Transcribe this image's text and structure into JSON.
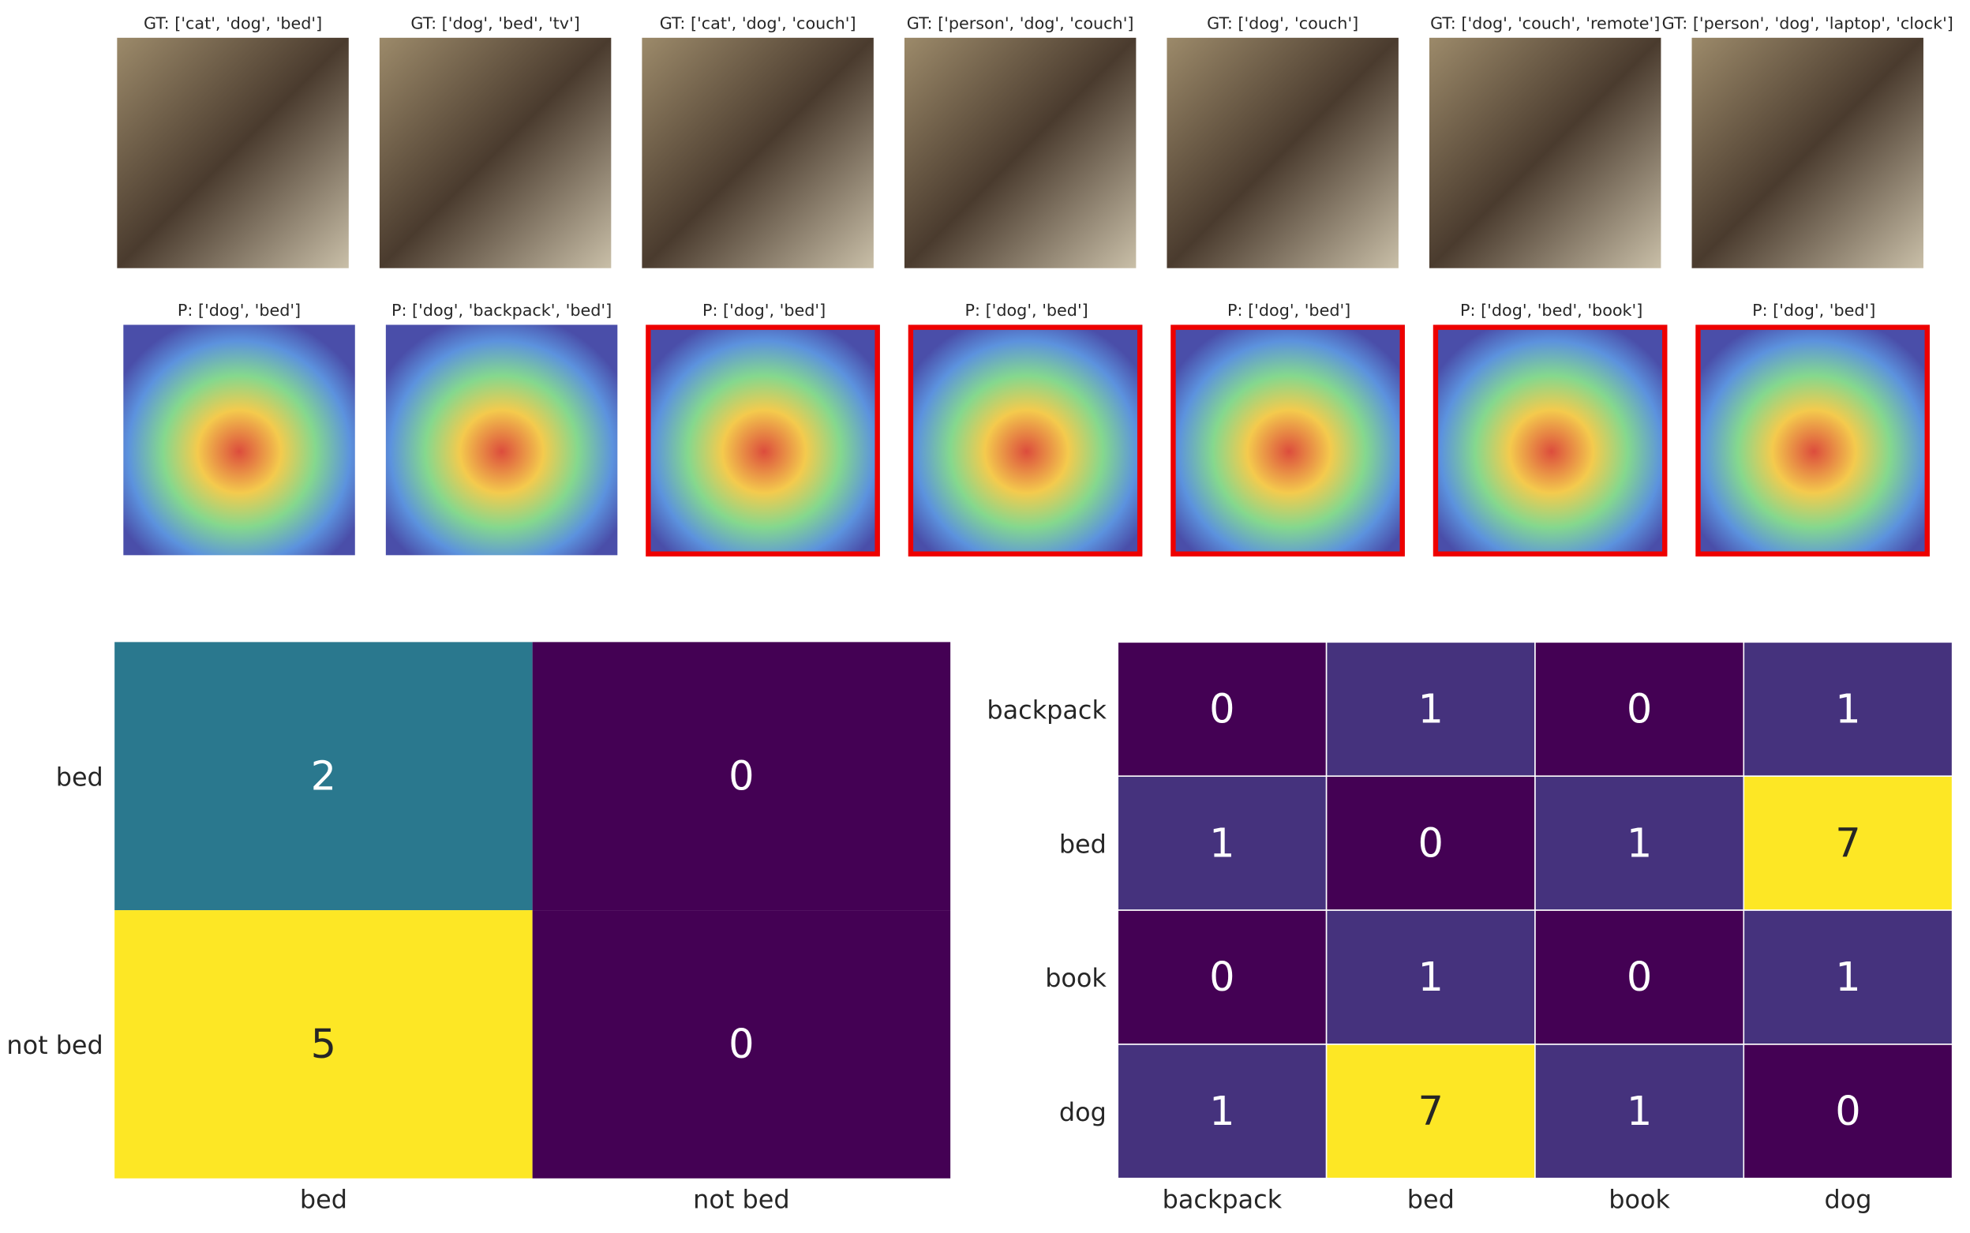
{
  "panels": [
    {
      "gt": "GT: ['cat', 'dog', 'bed']",
      "pred": "P: ['dog', 'bed']",
      "highlight": false
    },
    {
      "gt": "GT: ['dog', 'bed', 'tv']",
      "pred": "P: ['dog', 'backpack', 'bed']",
      "highlight": false
    },
    {
      "gt": "GT: ['cat', 'dog', 'couch']",
      "pred": "P: ['dog', 'bed']",
      "highlight": true
    },
    {
      "gt": "GT: ['person', 'dog', 'couch']",
      "pred": "P: ['dog', 'bed']",
      "highlight": true
    },
    {
      "gt": "GT: ['dog', 'couch']",
      "pred": "P: ['dog', 'bed']",
      "highlight": true
    },
    {
      "gt": "GT: ['dog', 'couch', 'remote']",
      "pred": "P: ['dog', 'bed', 'book']",
      "highlight": true
    },
    {
      "gt": "GT: ['person', 'dog', 'laptop', 'clock']",
      "pred": "P: ['dog', 'bed']",
      "highlight": true
    }
  ],
  "chart_data": [
    {
      "type": "heatmap",
      "rows": [
        "bed",
        "not bed"
      ],
      "columns": [
        "bed",
        "not bed"
      ],
      "values": [
        [
          2,
          0
        ],
        [
          5,
          0
        ]
      ],
      "colormap": "viridis"
    },
    {
      "type": "heatmap",
      "rows": [
        "backpack",
        "bed",
        "book",
        "dog"
      ],
      "columns": [
        "backpack",
        "bed",
        "book",
        "dog"
      ],
      "values": [
        [
          0,
          1,
          0,
          1
        ],
        [
          1,
          0,
          1,
          7
        ],
        [
          0,
          1,
          0,
          1
        ],
        [
          1,
          7,
          1,
          0
        ]
      ],
      "colormap": "viridis"
    }
  ]
}
